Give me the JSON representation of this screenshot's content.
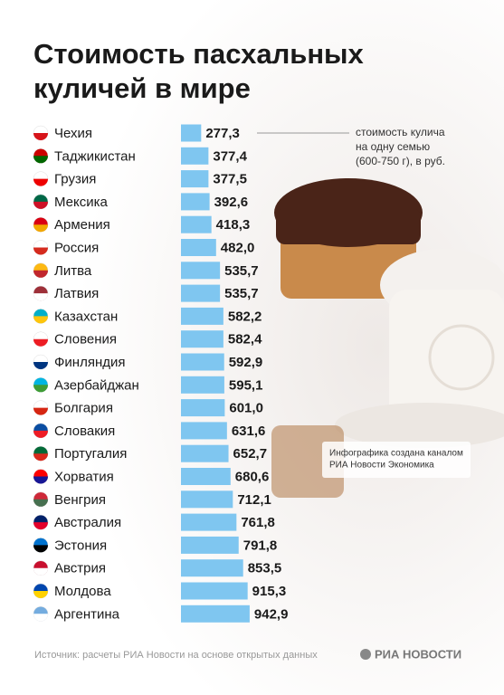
{
  "chart_data": {
    "type": "bar",
    "orientation": "horizontal",
    "title": [
      "Стоимость пасхальных",
      "куличей в мире"
    ],
    "categories": [
      "Чехия",
      "Таджикистан",
      "Грузия",
      "Мексика",
      "Армения",
      "Россия",
      "Литва",
      "Латвия",
      "Казахстан",
      "Словения",
      "Финляндия",
      "Азербайджан",
      "Болгария",
      "Словакия",
      "Португалия",
      "Хорватия",
      "Венгрия",
      "Австралия",
      "Эстония",
      "Австрия",
      "Молдова",
      "Аргентина"
    ],
    "values": [
      277.3,
      377.4,
      377.5,
      392.6,
      418.3,
      482.0,
      535.7,
      535.7,
      582.2,
      582.4,
      592.9,
      595.1,
      601.0,
      631.6,
      652.7,
      680.6,
      712.1,
      761.8,
      791.8,
      853.5,
      915.3,
      942.9
    ],
    "value_labels": [
      "277,3",
      "377,4",
      "377,5",
      "392,6",
      "418,3",
      "482,0",
      "535,7",
      "535,7",
      "582,2",
      "582,4",
      "592,9",
      "595,1",
      "601,0",
      "631,6",
      "652,7",
      "680,6",
      "712,1",
      "761,8",
      "791,8",
      "853,5",
      "915,3",
      "942,9"
    ],
    "color": "#7fc6f0",
    "annotation": [
      "стоимость кулича",
      "на одну семью",
      "(600-750 г), в руб."
    ],
    "note": [
      "Инфографика создана каналом",
      "РИА Новости Экономика"
    ],
    "source": "Источник: расчеты РИА Новости на основе открытых данных",
    "logo": "РИА НОВОСТИ"
  }
}
